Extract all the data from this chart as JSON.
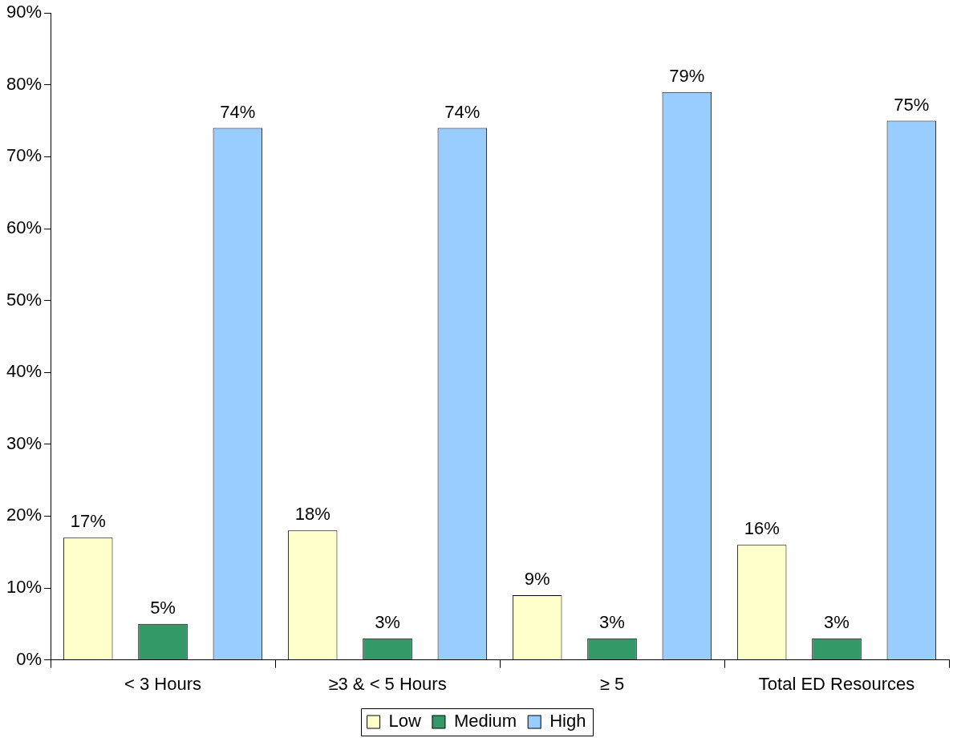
{
  "chart_data": {
    "type": "bar",
    "categories": [
      "< 3 Hours",
      "≥3 & < 5 Hours",
      "≥ 5",
      "Total ED Resources"
    ],
    "series": [
      {
        "name": "Low",
        "color": "#ffffcc",
        "values": [
          17,
          18,
          9,
          16
        ],
        "value_labels": [
          "17%",
          "18%",
          "9%",
          "16%"
        ]
      },
      {
        "name": "Medium",
        "color": "#339966",
        "values": [
          5,
          3,
          3,
          3
        ],
        "value_labels": [
          "5%",
          "3%",
          "3%",
          "3%"
        ]
      },
      {
        "name": "High",
        "color": "#99ccff",
        "values": [
          74,
          74,
          79,
          75
        ],
        "value_labels": [
          "74%",
          "74%",
          "79%",
          "75%"
        ]
      }
    ],
    "ylim": [
      0,
      90
    ],
    "yticks": [
      {
        "value": 0,
        "label": "0%"
      },
      {
        "value": 10,
        "label": "10%"
      },
      {
        "value": 20,
        "label": "20%"
      },
      {
        "value": 30,
        "label": "30%"
      },
      {
        "value": 40,
        "label": "40%"
      },
      {
        "value": 50,
        "label": "50%"
      },
      {
        "value": 60,
        "label": "60%"
      },
      {
        "value": 70,
        "label": "70%"
      },
      {
        "value": 80,
        "label": "80%"
      },
      {
        "value": 90,
        "label": "90%"
      }
    ],
    "legend": "bottom",
    "grid": false
  }
}
